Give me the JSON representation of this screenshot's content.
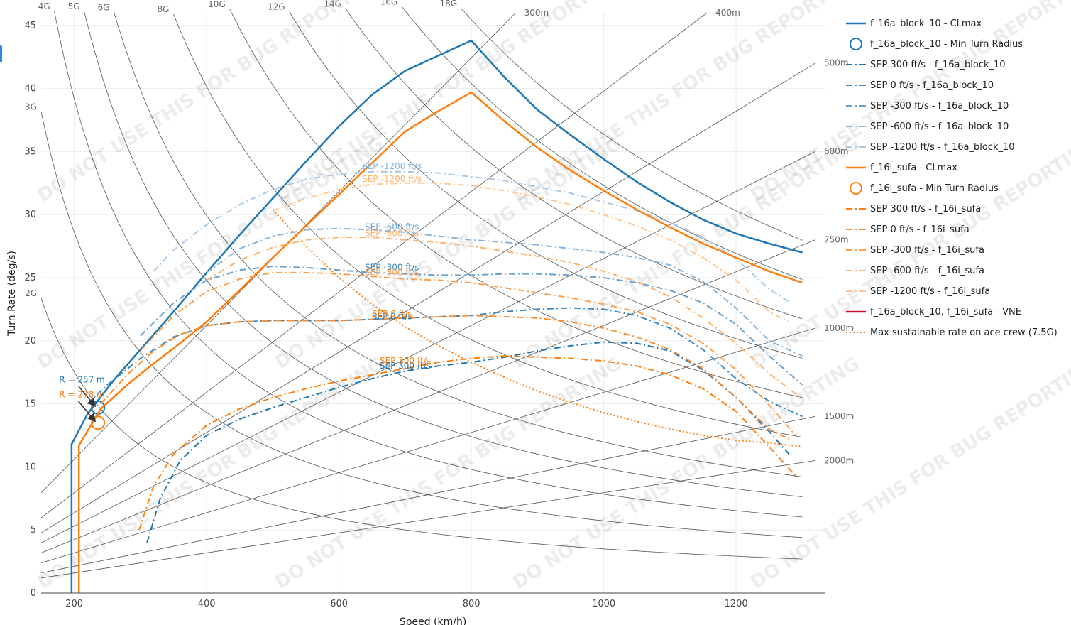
{
  "chart_data": {
    "type": "line",
    "xlabel": "Speed (km/h)",
    "ylabel": "Turn Rate (deg/s)",
    "xlim": [
      150,
      1335
    ],
    "ylim": [
      0,
      46
    ],
    "x_ticks": [
      200,
      400,
      600,
      800,
      1000,
      1200
    ],
    "y_ticks": [
      0,
      5,
      10,
      15,
      20,
      25,
      30,
      35,
      40,
      45
    ],
    "grid": true,
    "legend_position": "right",
    "watermark_text": "DO NOT USE THIS FOR BUG REPORTING",
    "g_lines": [
      {
        "label": "2G",
        "g": 2
      },
      {
        "label": "3G",
        "g": 3
      },
      {
        "label": "4G",
        "g": 4
      },
      {
        "label": "5G",
        "g": 5
      },
      {
        "label": "6G",
        "g": 6
      },
      {
        "label": "8G",
        "g": 8
      },
      {
        "label": "10G",
        "g": 10
      },
      {
        "label": "12G",
        "g": 12
      },
      {
        "label": "14G",
        "g": 14
      },
      {
        "label": "16G",
        "g": 16
      },
      {
        "label": "18G",
        "g": 18
      }
    ],
    "radius_lines": [
      {
        "label": "300m",
        "r": 300
      },
      {
        "label": "400m",
        "r": 400
      },
      {
        "label": "500m",
        "r": 500
      },
      {
        "label": "600m",
        "r": 600
      },
      {
        "label": "750m",
        "r": 750
      },
      {
        "label": "1000m",
        "r": 1000
      },
      {
        "label": "1500m",
        "r": 1500
      },
      {
        "label": "2000m",
        "r": 2000
      }
    ],
    "series": [
      {
        "name": "f_16a_block_10 - CLmax",
        "color": "#1f77b4",
        "dash": "solid",
        "width": 2.5,
        "x": [
          196,
          196,
          220,
          260,
          300,
          350,
          400,
          450,
          500,
          550,
          600,
          650,
          700,
          750,
          800,
          850,
          900,
          950,
          1000,
          1050,
          1100,
          1150,
          1200,
          1250,
          1300
        ],
        "y": [
          0,
          11.8,
          14.2,
          16.9,
          19.3,
          22.3,
          25.4,
          28.4,
          31.3,
          34.2,
          37.0,
          39.5,
          41.4,
          42.6,
          43.8,
          40.9,
          38.3,
          36.3,
          34.4,
          32.6,
          31.0,
          29.6,
          28.5,
          27.7,
          27.0
        ]
      },
      {
        "name": "f_16a_block_10 - Min Turn Radius",
        "color": "#1f77b4",
        "marker": "circle-open",
        "x": [
          236
        ],
        "y": [
          14.7
        ]
      },
      {
        "name": "SEP 300 ft/s - f_16a_block_10",
        "color": "#1f77b4",
        "dash": "dashdot",
        "width": 2,
        "x": [
          310,
          330,
          360,
          400,
          450,
          500,
          550,
          600,
          650,
          700,
          750,
          800,
          850,
          900,
          950,
          1000,
          1050,
          1100,
          1150,
          1200,
          1250,
          1280
        ],
        "y": [
          4.0,
          7.5,
          10.5,
          12.5,
          13.8,
          14.7,
          15.5,
          16.3,
          17.0,
          17.6,
          18.0,
          18.3,
          18.7,
          19.2,
          19.6,
          19.9,
          19.8,
          19.2,
          17.7,
          15.5,
          12.8,
          11.0
        ]
      },
      {
        "name": "SEP 0 ft/s - f_16a_block_10",
        "color": "#3d87c0",
        "dash": "dashdot",
        "width": 2,
        "x": [
          220,
          250,
          300,
          350,
          400,
          450,
          500,
          550,
          600,
          650,
          700,
          750,
          800,
          850,
          900,
          950,
          1000,
          1050,
          1100,
          1150,
          1200,
          1250,
          1300
        ],
        "y": [
          15.0,
          16.5,
          18.6,
          20.3,
          21.2,
          21.5,
          21.6,
          21.6,
          21.6,
          21.7,
          21.8,
          21.9,
          22.0,
          22.3,
          22.5,
          22.6,
          22.5,
          22.0,
          21.0,
          19.3,
          17.0,
          15.2,
          14.0
        ]
      },
      {
        "name": "SEP -300 ft/s - f_16a_block_10",
        "color": "#6aa0cf",
        "dash": "dashdot",
        "width": 2,
        "x": [
          300,
          350,
          400,
          450,
          500,
          550,
          600,
          650,
          700,
          750,
          800,
          850,
          900,
          950,
          1000,
          1050,
          1100,
          1150,
          1200,
          1250,
          1300
        ],
        "y": [
          20.4,
          23.0,
          24.8,
          25.6,
          25.9,
          25.8,
          25.6,
          25.4,
          25.3,
          25.2,
          25.2,
          25.3,
          25.3,
          25.2,
          25.0,
          24.6,
          24.0,
          23.0,
          21.3,
          18.8,
          16.5
        ]
      },
      {
        "name": "SEP -600 ft/s - f_16a_block_10",
        "color": "#86b4da",
        "dash": "dashdot",
        "width": 2,
        "x": [
          400,
          450,
          500,
          550,
          600,
          650,
          700,
          750,
          800,
          850,
          900,
          950,
          1000,
          1050,
          1100,
          1150,
          1200,
          1250,
          1300
        ],
        "y": [
          25.4,
          27.3,
          28.3,
          28.8,
          28.9,
          28.8,
          28.6,
          28.3,
          28.0,
          27.8,
          27.6,
          27.3,
          27.0,
          26.6,
          26.0,
          24.7,
          22.6,
          20.0,
          18.8
        ]
      },
      {
        "name": "SEP -1200 ft/s - f_16a_block_10",
        "color": "#a9c9e6",
        "dash": "dashdot",
        "width": 2,
        "x": [
          320,
          350,
          400,
          450,
          500,
          550,
          600,
          650,
          700,
          750,
          800,
          850,
          900,
          950,
          1000,
          1050,
          1100,
          1150,
          1200,
          1250,
          1280
        ],
        "y": [
          25.5,
          27.2,
          29.2,
          30.8,
          32.0,
          32.8,
          33.2,
          33.4,
          33.4,
          33.3,
          33.0,
          32.7,
          32.2,
          31.7,
          31.0,
          30.3,
          29.4,
          28.2,
          26.5,
          24.1,
          23.1
        ]
      },
      {
        "name": "f_16i_sufa - CLmax",
        "color": "#ff7f0e",
        "dash": "solid",
        "width": 2.5,
        "x": [
          207,
          207,
          240,
          280,
          320,
          360,
          400,
          450,
          500,
          550,
          600,
          650,
          700,
          750,
          800,
          850,
          900,
          950,
          1000,
          1050,
          1100,
          1150,
          1200,
          1250,
          1300
        ],
        "y": [
          0,
          11.7,
          14.6,
          16.5,
          18.2,
          19.8,
          21.5,
          24.0,
          26.6,
          29.1,
          31.6,
          34.1,
          36.6,
          38.2,
          39.7,
          37.4,
          35.3,
          33.5,
          31.9,
          30.4,
          29.0,
          27.7,
          26.6,
          25.5,
          24.6
        ]
      },
      {
        "name": "f_16i_sufa - Min Turn Radius",
        "color": "#ff7f0e",
        "marker": "circle-open",
        "x": [
          236
        ],
        "y": [
          13.5
        ]
      },
      {
        "name": "SEP 300 ft/s - f_16i_sufa",
        "color": "#ff7f0e",
        "dash": "dashdot",
        "width": 2,
        "x": [
          298,
          320,
          350,
          400,
          450,
          500,
          550,
          600,
          650,
          700,
          750,
          800,
          850,
          900,
          950,
          1000,
          1050,
          1100,
          1150,
          1200,
          1250,
          1290
        ],
        "y": [
          5.0,
          8.5,
          11.0,
          13.3,
          14.6,
          15.5,
          16.2,
          16.8,
          17.3,
          17.8,
          18.3,
          18.6,
          18.8,
          18.7,
          18.6,
          18.4,
          18.0,
          17.3,
          16.2,
          14.4,
          11.6,
          9.3
        ]
      },
      {
        "name": "SEP 0 ft/s - f_16i_sufa",
        "color": "#ff8c2e",
        "dash": "dashdot",
        "width": 2,
        "x": [
          240,
          280,
          320,
          360,
          400,
          450,
          500,
          550,
          600,
          650,
          700,
          750,
          800,
          850,
          900,
          950,
          1000,
          1050,
          1100,
          1150,
          1200,
          1250,
          1280
        ],
        "y": [
          15.0,
          17.3,
          19.2,
          20.5,
          21.2,
          21.5,
          21.6,
          21.6,
          21.6,
          21.7,
          21.8,
          21.9,
          22.0,
          21.9,
          21.8,
          21.5,
          21.0,
          20.3,
          19.3,
          17.8,
          15.5,
          13.0,
          12.2
        ]
      },
      {
        "name": "SEP -300 ft/s - f_16i_sufa",
        "color": "#ffa050",
        "dash": "dashdot",
        "width": 2,
        "x": [
          300,
          350,
          400,
          450,
          500,
          550,
          600,
          650,
          700,
          750,
          800,
          850,
          900,
          950,
          1000,
          1050,
          1100,
          1150,
          1200,
          1250,
          1290
        ],
        "y": [
          19.2,
          22.0,
          23.9,
          24.9,
          25.4,
          25.4,
          25.3,
          25.1,
          24.9,
          24.8,
          24.6,
          24.2,
          23.8,
          23.4,
          22.9,
          22.3,
          21.3,
          19.8,
          17.7,
          14.9,
          12.5
        ]
      },
      {
        "name": "SEP -600 ft/s - f_16i_sufa",
        "color": "#ffb36e",
        "dash": "dashdot",
        "width": 2,
        "x": [
          400,
          450,
          500,
          550,
          600,
          650,
          700,
          750,
          800,
          850,
          900,
          950,
          1000,
          1050,
          1100,
          1150,
          1200,
          1250,
          1300
        ],
        "y": [
          24.8,
          26.4,
          27.4,
          28.0,
          28.2,
          28.2,
          28.0,
          27.8,
          27.5,
          27.1,
          26.7,
          26.2,
          25.5,
          24.7,
          23.5,
          21.8,
          19.8,
          17.4,
          15.4
        ]
      },
      {
        "name": "SEP -1200 ft/s - f_16i_sufa",
        "color": "#ffc891",
        "dash": "dashdot",
        "width": 2,
        "x": [
          500,
          550,
          600,
          650,
          700,
          750,
          800,
          850,
          900,
          950,
          1000,
          1050,
          1100,
          1150,
          1200,
          1250,
          1280
        ],
        "y": [
          30.3,
          31.3,
          32.0,
          32.4,
          32.5,
          32.5,
          32.3,
          31.9,
          31.4,
          30.8,
          30.0,
          29.1,
          28.0,
          26.6,
          24.8,
          22.3,
          21.5
        ]
      },
      {
        "name": "f_16a_block_10, f_16i_sufa - VNE",
        "color": "#c8102e",
        "dash": "solid",
        "width": 2.5,
        "x": [],
        "y": []
      },
      {
        "name": "Max sustainable rate on ace crew (7.5G)",
        "color": "#ff7f0e",
        "dash": "dot",
        "width": 2,
        "x": [
          500,
          550,
          600,
          650,
          700,
          750,
          800,
          850,
          900,
          950,
          1000,
          1050,
          1100,
          1150,
          1200,
          1250,
          1300
        ],
        "y": [
          30.4,
          27.5,
          25.0,
          22.9,
          21.1,
          19.6,
          18.3,
          17.1,
          16.0,
          15.1,
          14.3,
          13.6,
          13.0,
          12.5,
          12.1,
          11.9,
          11.6
        ]
      }
    ],
    "annotations": [
      {
        "text": "R = 257 m",
        "color": "#1f77b4",
        "x": 190,
        "y": 16.7,
        "arrow_to_x": 236,
        "arrow_to_y": 14.7
      },
      {
        "text": "R = 278 m",
        "color": "#ff7f0e",
        "x": 190,
        "y": 15.5,
        "arrow_to_x": 236,
        "arrow_to_y": 13.5
      }
    ],
    "sep_labels": [
      {
        "text": "SEP 300 ft/s",
        "color": "#1f77b4",
        "x": 700,
        "y": 17.8
      },
      {
        "text": "SEP 300 ft/s",
        "color": "#ff7f0e",
        "x": 700,
        "y": 18.2
      },
      {
        "text": "SEP 0 ft/s",
        "color": "#1f77b4",
        "x": 680,
        "y": 21.7
      },
      {
        "text": "SEP 0 ft/s",
        "color": "#ff7f0e",
        "x": 680,
        "y": 21.9
      },
      {
        "text": "SEP -300 ft/s",
        "color": "#3d87c0",
        "x": 680,
        "y": 25.6
      },
      {
        "text": "SEP -300 ft/s",
        "color": "#ffa050",
        "x": 680,
        "y": 25.2
      },
      {
        "text": "SEP -600 ft/s",
        "color": "#6aa0cf",
        "x": 680,
        "y": 28.8
      },
      {
        "text": "SEP -600 ft/s",
        "color": "#ffb36e",
        "x": 680,
        "y": 28.3
      },
      {
        "text": "SEP -1200 ft/s",
        "color": "#86b4da",
        "x": 680,
        "y": 33.6
      },
      {
        "text": "SEP -1200 ft/s",
        "color": "#ffb36e",
        "x": 680,
        "y": 32.6
      }
    ]
  }
}
